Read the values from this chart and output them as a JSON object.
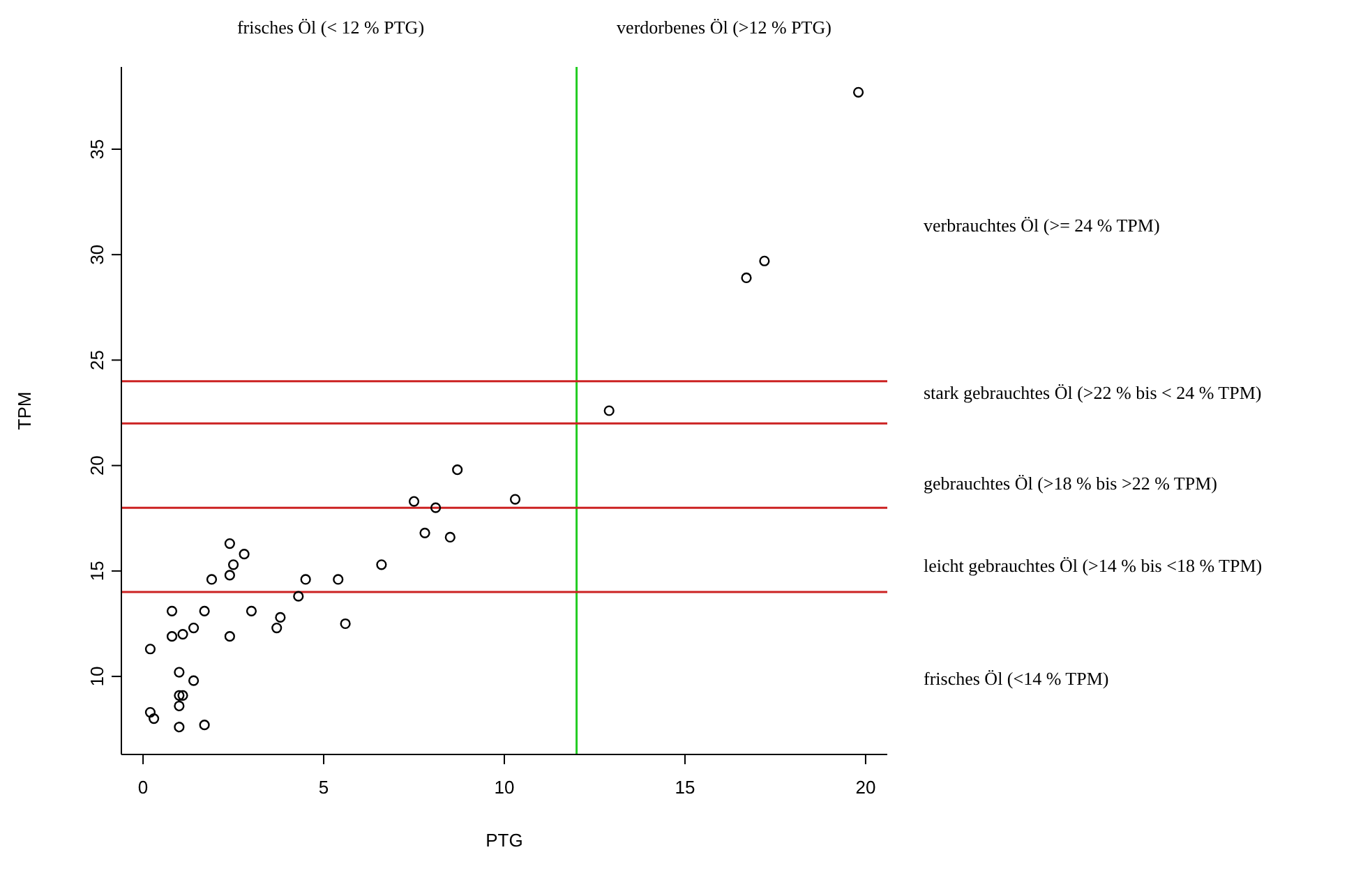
{
  "chart_data": {
    "type": "scatter",
    "xlabel": "PTG",
    "ylabel": "TPM",
    "x": [
      19.8,
      17.2,
      16.7,
      12.9,
      8.7,
      7.5,
      8.1,
      10.3,
      7.8,
      8.5,
      6.6,
      2.4,
      2.8,
      2.5,
      2.4,
      1.9,
      4.5,
      5.4,
      4.3,
      0.8,
      1.7,
      3.0,
      3.8,
      3.7,
      5.6,
      0.8,
      1.1,
      1.4,
      2.4,
      0.2,
      1.0,
      1.4,
      1.0,
      1.1,
      1.0,
      0.2,
      0.3,
      1.0,
      1.7
    ],
    "values": [
      37.7,
      29.7,
      28.9,
      22.6,
      19.8,
      18.3,
      18.0,
      18.4,
      16.8,
      16.6,
      15.3,
      16.3,
      15.8,
      15.3,
      14.8,
      14.6,
      14.6,
      14.6,
      13.8,
      13.1,
      13.1,
      13.1,
      12.8,
      12.3,
      12.5,
      11.9,
      12.0,
      12.3,
      11.9,
      11.3,
      10.2,
      9.8,
      9.1,
      9.1,
      8.6,
      8.3,
      8.0,
      7.6,
      7.7
    ],
    "color": "#000000",
    "marker": "circle",
    "grid": false,
    "legend": false,
    "xlim": [
      -0.6,
      20.6
    ],
    "ylim": [
      6.3,
      38.9
    ],
    "xticks": [
      0,
      5,
      10,
      15,
      20
    ],
    "yticks": [
      10,
      15,
      20,
      25,
      30,
      35
    ],
    "ref_lines": [
      {
        "axis": "x",
        "value": 12,
        "color": "#22cc22"
      },
      {
        "axis": "y",
        "value": 14,
        "color": "#cc2222"
      },
      {
        "axis": "y",
        "value": 18,
        "color": "#cc2222"
      },
      {
        "axis": "y",
        "value": 22,
        "color": "#cc2222"
      },
      {
        "axis": "y",
        "value": 24,
        "color": "#cc2222"
      }
    ],
    "annotations": [
      "frisches Öl (< 12 % PTG)",
      "verdorbenes Öl (>12 % PTG)",
      "verbrauchtes Öl (>= 24 % TPM)",
      "stark gebrauchtes Öl (>22 % bis < 24 % TPM)",
      "gebrauchtes Öl (>18 % bis >22 % TPM)",
      "leicht gebrauchtes Öl (>14 % bis <18 % TPM)",
      "frisches Öl (<14 % TPM)"
    ]
  }
}
